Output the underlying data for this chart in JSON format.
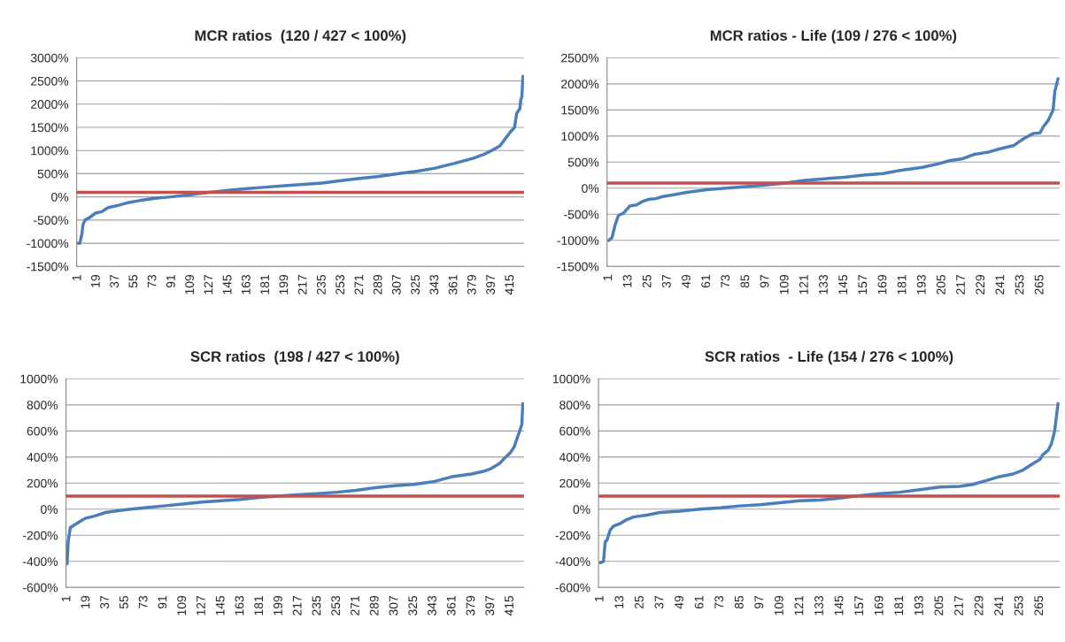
{
  "chart_data": [
    {
      "type": "line",
      "title": "MCR ratios  (120 / 427 < 100%)",
      "grid": "y",
      "x": [
        1,
        3,
        5,
        6,
        8,
        12,
        18,
        24,
        30,
        40,
        50,
        60,
        75,
        90,
        110,
        127,
        145,
        163,
        181,
        199,
        217,
        235,
        253,
        271,
        289,
        307,
        325,
        343,
        361,
        379,
        390,
        397,
        405,
        410,
        415,
        419,
        421,
        424,
        425,
        426,
        427
      ],
      "series": [
        {
          "color": "#4a7ebb",
          "values": [
            -1000,
            -1000,
            -800,
            -600,
            -500,
            -450,
            -350,
            -320,
            -230,
            -180,
            -120,
            -80,
            -30,
            0,
            50,
            100,
            140,
            180,
            210,
            240,
            270,
            300,
            350,
            400,
            440,
            500,
            550,
            620,
            720,
            830,
            920,
            1000,
            1100,
            1250,
            1400,
            1500,
            1800,
            1900,
            2100,
            2150,
            2600
          ]
        }
      ],
      "xlim": [
        0,
        428
      ],
      "xticks": [
        1,
        19,
        37,
        55,
        73,
        91,
        109,
        127,
        145,
        163,
        181,
        199,
        217,
        235,
        253,
        271,
        289,
        307,
        325,
        343,
        361,
        379,
        397,
        415
      ],
      "ylim": [
        -1500,
        3000
      ],
      "yticks": [
        {
          "value": -1500,
          "label": "-1500%"
        },
        {
          "value": -1000,
          "label": "-1000%"
        },
        {
          "value": -500,
          "label": "-500%"
        },
        {
          "value": 0,
          "label": "0%"
        },
        {
          "value": 500,
          "label": "500%"
        },
        {
          "value": 1000,
          "label": "1000%"
        },
        {
          "value": 1500,
          "label": "1500%"
        },
        {
          "value": 2000,
          "label": "2000%"
        },
        {
          "value": 2500,
          "label": "2500%"
        },
        {
          "value": 3000,
          "label": "3000%"
        }
      ],
      "ref_lines": [
        {
          "axis": "y",
          "value": 100,
          "color": "#c0504d"
        }
      ]
    },
    {
      "type": "line",
      "title": "MCR ratios - Life (109 / 276 < 100%)",
      "grid": "y",
      "x": [
        1,
        3,
        5,
        7,
        10,
        14,
        18,
        22,
        26,
        30,
        34,
        40,
        49,
        61,
        73,
        85,
        97,
        109,
        121,
        133,
        137,
        145,
        157,
        169,
        181,
        193,
        203,
        210,
        217,
        225,
        233,
        241,
        249,
        255,
        261,
        265,
        267,
        270,
        273,
        274,
        276
      ],
      "series": [
        {
          "color": "#4a7ebb",
          "values": [
            -1000,
            -950,
            -700,
            -520,
            -480,
            -340,
            -320,
            -250,
            -210,
            -200,
            -160,
            -130,
            -80,
            -30,
            0,
            30,
            60,
            100,
            150,
            180,
            190,
            210,
            250,
            280,
            350,
            400,
            470,
            530,
            560,
            650,
            690,
            760,
            820,
            950,
            1050,
            1060,
            1180,
            1300,
            1500,
            1850,
            2100
          ]
        }
      ],
      "xlim": [
        0,
        277
      ],
      "xticks": [
        1,
        13,
        25,
        37,
        49,
        61,
        73,
        85,
        97,
        109,
        121,
        133,
        145,
        157,
        169,
        181,
        193,
        205,
        217,
        229,
        241,
        253,
        265
      ],
      "ylim": [
        -1500,
        2500
      ],
      "yticks": [
        {
          "value": -1500,
          "label": "-1500%"
        },
        {
          "value": -1000,
          "label": "-1000%"
        },
        {
          "value": -500,
          "label": "-500%"
        },
        {
          "value": 0,
          "label": "0%"
        },
        {
          "value": 500,
          "label": "500%"
        },
        {
          "value": 1000,
          "label": "1000%"
        },
        {
          "value": 1500,
          "label": "1500%"
        },
        {
          "value": 2000,
          "label": "2000%"
        },
        {
          "value": 2500,
          "label": "2500%"
        }
      ],
      "ref_lines": [
        {
          "axis": "y",
          "value": 100,
          "color": "#c0504d"
        }
      ]
    },
    {
      "type": "line",
      "title": "SCR ratios  (198 / 427 < 100%)",
      "grid": "y",
      "x": [
        1,
        2,
        4,
        8,
        14,
        18,
        28,
        37,
        55,
        73,
        91,
        109,
        127,
        145,
        163,
        181,
        198,
        217,
        235,
        253,
        271,
        289,
        307,
        325,
        343,
        361,
        379,
        390,
        397,
        405,
        411,
        415,
        419,
        421,
        424,
        426,
        427
      ],
      "series": [
        {
          "color": "#4a7ebb",
          "values": [
            -420,
            -250,
            -140,
            -120,
            -90,
            -70,
            -50,
            -25,
            -5,
            10,
            25,
            40,
            55,
            65,
            75,
            90,
            100,
            110,
            120,
            130,
            145,
            165,
            180,
            190,
            210,
            250,
            270,
            290,
            310,
            350,
            400,
            430,
            480,
            530,
            600,
            650,
            810
          ]
        }
      ],
      "xlim": [
        0,
        428
      ],
      "xticks": [
        1,
        19,
        37,
        55,
        73,
        91,
        109,
        127,
        145,
        163,
        181,
        199,
        217,
        235,
        253,
        271,
        289,
        307,
        325,
        343,
        361,
        379,
        397,
        415
      ],
      "ylim": [
        -600,
        1000
      ],
      "yticks": [
        {
          "value": -600,
          "label": "-600%"
        },
        {
          "value": -400,
          "label": "-400%"
        },
        {
          "value": -200,
          "label": "-200%"
        },
        {
          "value": 0,
          "label": "0%"
        },
        {
          "value": 200,
          "label": "200%"
        },
        {
          "value": 400,
          "label": "400%"
        },
        {
          "value": 600,
          "label": "600%"
        },
        {
          "value": 800,
          "label": "800%"
        },
        {
          "value": 1000,
          "label": "1000%"
        }
      ],
      "ref_lines": [
        {
          "axis": "y",
          "value": 100,
          "color": "#c0504d"
        }
      ]
    },
    {
      "type": "line",
      "title": "SCR ratios  - Life (154 / 276 < 100%)",
      "grid": "y",
      "x": [
        1,
        3,
        4,
        5,
        7,
        9,
        13,
        17,
        21,
        29,
        37,
        49,
        61,
        73,
        85,
        97,
        109,
        121,
        133,
        145,
        154,
        169,
        181,
        193,
        205,
        217,
        225,
        233,
        241,
        249,
        255,
        261,
        265,
        267,
        270,
        272,
        274,
        276
      ],
      "series": [
        {
          "color": "#4a7ebb",
          "values": [
            -410,
            -400,
            -250,
            -240,
            -160,
            -130,
            -110,
            -80,
            -60,
            -45,
            -25,
            -15,
            0,
            10,
            25,
            35,
            50,
            65,
            70,
            85,
            100,
            120,
            130,
            150,
            170,
            175,
            190,
            220,
            250,
            270,
            300,
            350,
            380,
            420,
            450,
            500,
            600,
            810
          ]
        }
      ],
      "xlim": [
        0,
        277
      ],
      "xticks": [
        1,
        13,
        25,
        37,
        49,
        61,
        73,
        85,
        97,
        109,
        121,
        133,
        145,
        157,
        169,
        181,
        193,
        205,
        217,
        229,
        241,
        253,
        265
      ],
      "ylim": [
        -600,
        1000
      ],
      "yticks": [
        {
          "value": -600,
          "label": "-600%"
        },
        {
          "value": -400,
          "label": "-400%"
        },
        {
          "value": -200,
          "label": "-200%"
        },
        {
          "value": 0,
          "label": "0%"
        },
        {
          "value": 200,
          "label": "200%"
        },
        {
          "value": 400,
          "label": "400%"
        },
        {
          "value": 600,
          "label": "600%"
        },
        {
          "value": 800,
          "label": "800%"
        },
        {
          "value": 1000,
          "label": "1000%"
        }
      ],
      "ref_lines": [
        {
          "axis": "y",
          "value": 100,
          "color": "#c0504d"
        }
      ]
    }
  ]
}
